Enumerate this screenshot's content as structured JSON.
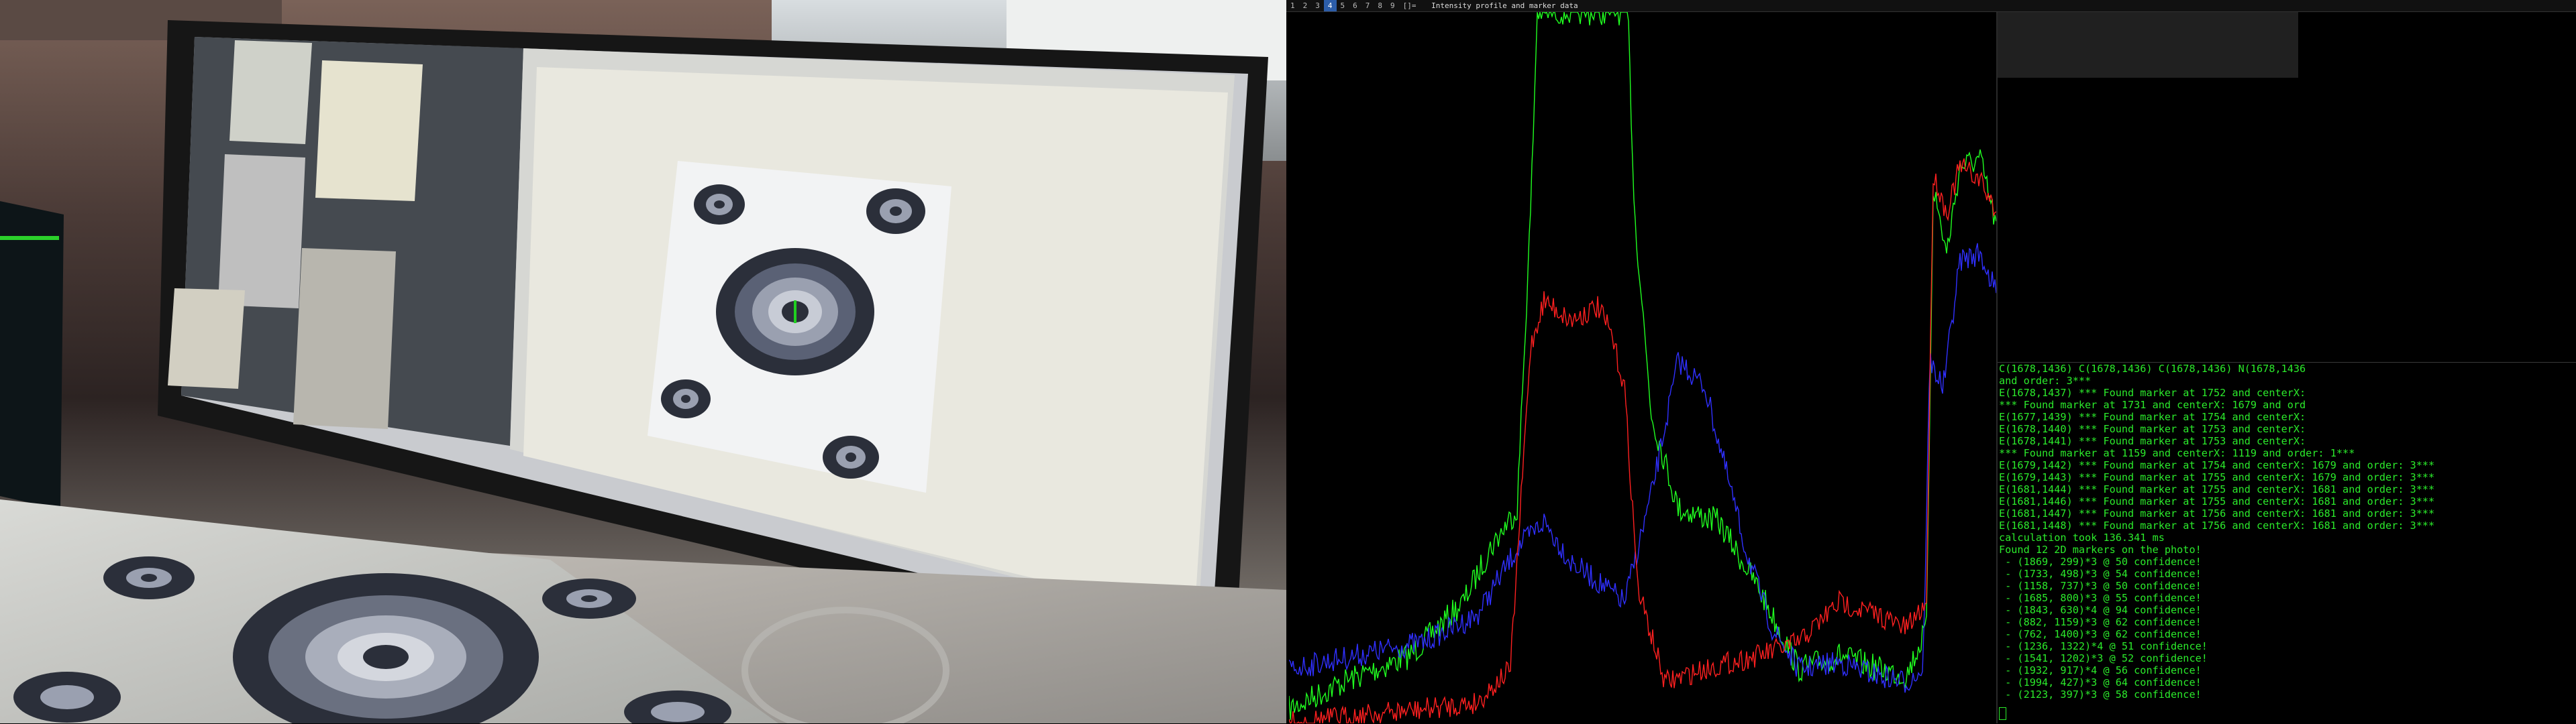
{
  "wm_bar": {
    "workspaces": [
      "1",
      "2",
      "3",
      "4",
      "5",
      "6",
      "7",
      "8",
      "9",
      "[]="
    ],
    "active_workspace": "4",
    "window_title": "Intensity profile and marker data"
  },
  "photo": {
    "description_icon": "camera-photo-of-monitor-and-printed-markers"
  },
  "plot": {
    "series_colors": {
      "red": "#ff2020",
      "green": "#20ff20",
      "blue": "#3030ff"
    }
  },
  "terminal": {
    "lines": [
      "C(1678,1436) C(1678,1436) C(1678,1436) N(1678,1436",
      "and order: 3***",
      "E(1678,1437) *** Found marker at 1752 and centerX:",
      "*** Found marker at 1731 and centerX: 1679 and ord",
      "E(1677,1439) *** Found marker at 1754 and centerX:",
      "E(1678,1440) *** Found marker at 1753 and centerX:",
      "E(1678,1441) *** Found marker at 1753 and centerX:",
      "*** Found marker at 1159 and centerX: 1119 and order: 1***",
      "E(1679,1442) *** Found marker at 1754 and centerX: 1679 and order: 3***",
      "E(1679,1443) *** Found marker at 1755 and centerX: 1679 and order: 3***",
      "E(1681,1444) *** Found marker at 1755 and centerX: 1681 and order: 3***",
      "E(1681,1446) *** Found marker at 1755 and centerX: 1681 and order: 3***",
      "E(1681,1447) *** Found marker at 1756 and centerX: 1681 and order: 3***",
      "E(1681,1448) *** Found marker at 1756 and centerX: 1681 and order: 3***",
      "calculation took 136.341 ms",
      "Found 12 2D markers on the photo!",
      " - (1869, 299)*3 @ 50 confidence!",
      " - (1733, 498)*3 @ 54 confidence!",
      " - (1158, 737)*3 @ 50 confidence!",
      " - (1685, 800)*3 @ 55 confidence!",
      " - (1843, 630)*4 @ 94 confidence!",
      " - (882, 1159)*3 @ 62 confidence!",
      " - (762, 1400)*3 @ 62 confidence!",
      " - (1236, 1322)*4 @ 51 confidence!",
      " - (1541, 1202)*3 @ 52 confidence!",
      " - (1932, 917)*4 @ 56 confidence!",
      " - (1994, 427)*3 @ 64 confidence!",
      " - (2123, 397)*3 @ 58 confidence!"
    ]
  }
}
